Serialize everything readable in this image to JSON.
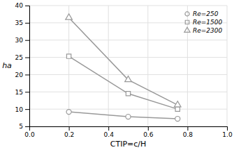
{
  "chart_data": {
    "type": "line",
    "xlabel": "CTIP=c/H",
    "ylabel": "ha",
    "x": [
      0.2,
      0.5,
      0.75
    ],
    "series": [
      {
        "name": "Re=250",
        "color": "#999999",
        "marker": "circle",
        "values": [
          9.2,
          7.8,
          7.2
        ]
      },
      {
        "name": "Re=1500",
        "color": "#999999",
        "marker": "square",
        "values": [
          25.3,
          14.5,
          10.0
        ]
      },
      {
        "name": "Re=2300",
        "color": "#999999",
        "marker": "triangle",
        "values": [
          36.5,
          18.5,
          11.2
        ]
      }
    ],
    "xlim": [
      0.0,
      1.0
    ],
    "ylim": [
      5,
      40
    ],
    "xticks": [
      {
        "value": 0,
        "label": "0.0"
      },
      0.2,
      0.4,
      0.6,
      0.8,
      {
        "value": 1,
        "label": "1.0"
      }
    ],
    "yticks": [
      5,
      10,
      15,
      20,
      25,
      30,
      35,
      40
    ],
    "grid": true,
    "legend": "upper-right"
  }
}
